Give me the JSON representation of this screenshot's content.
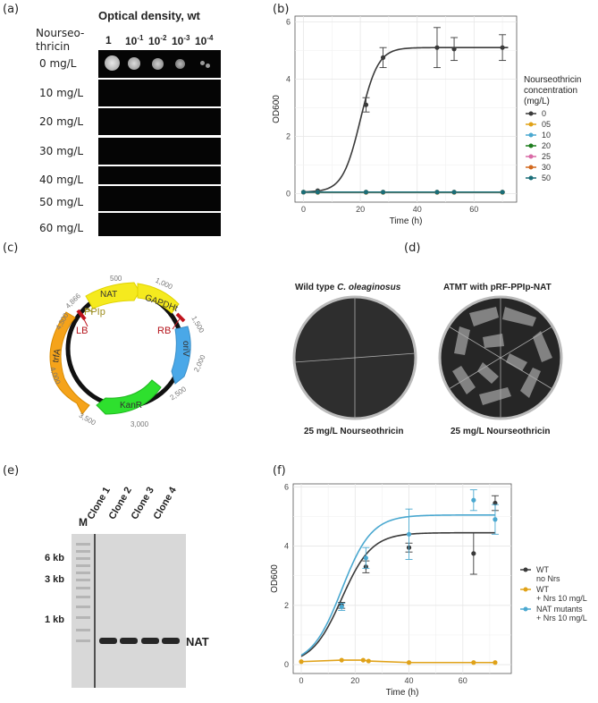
{
  "panels": {
    "a": {
      "label": "(a)",
      "header": "Optical density, wt",
      "row_header": "Nourseo-\nthricin",
      "dilutions": [
        "1",
        "10",
        "10",
        "10",
        "10"
      ],
      "dilution_exponents": [
        "",
        "-1",
        "-2",
        "-3",
        "-4"
      ],
      "rows": [
        "0 mg/L",
        "10 mg/L",
        "20 mg/L",
        "30 mg/L",
        "40 mg/L",
        "50 mg/L",
        "60 mg/L"
      ]
    },
    "b": {
      "label": "(b)"
    },
    "c": {
      "label": "(c)",
      "features": [
        "NAT",
        "GAPDHt",
        "oriV",
        "KanR",
        "trfA"
      ],
      "promoter": "PPIp",
      "borders": [
        "LB",
        "RB"
      ],
      "ticks": [
        "500",
        "1,000",
        "1,500",
        "2,000",
        "2,500",
        "3,000",
        "3,500",
        "4,000",
        "4,500",
        "4,866"
      ]
    },
    "d": {
      "label": "(d)",
      "left_title_prefix": "Wild type ",
      "left_title_italic": "C. oleaginosus",
      "right_title": "ATMT with pRF-PPIp-NAT",
      "left_caption": "25 mg/L Nourseothricin",
      "right_caption": "25 mg/L Nourseothricin"
    },
    "e": {
      "label": "(e)",
      "marker_label": "M",
      "lanes": [
        "Clone 1",
        "Clone 2",
        "Clone 3",
        "Clone 4"
      ],
      "sizes": [
        "6 kb",
        "3 kb",
        "1 kb"
      ],
      "band_label": "NAT"
    },
    "f": {
      "label": "(f)"
    }
  },
  "chart_data": [
    {
      "id": "b",
      "type": "line",
      "xlabel": "Time (h)",
      "ylabel": "OD600",
      "xlim": [
        -3,
        75
      ],
      "ylim": [
        -0.3,
        6.2
      ],
      "xticks": [
        0,
        20,
        40,
        60
      ],
      "yticks": [
        0,
        2,
        4,
        6
      ],
      "legend_title": "Nourseothricin\nconcentration\n(mg/L)",
      "legend_position": "right",
      "series": [
        {
          "name": "0",
          "color": "#3a3a3a",
          "x": [
            5,
            22,
            28,
            47,
            53,
            70
          ],
          "y": [
            0.1,
            3.1,
            4.75,
            5.1,
            5.05,
            5.1
          ],
          "err": [
            0.03,
            0.25,
            0.35,
            0.7,
            0.4,
            0.45
          ],
          "fit": "sigmoid",
          "fit_params": [
            0.05,
            5.1,
            20,
            0.32
          ]
        },
        {
          "name": "05",
          "color": "#e0a218",
          "x": [
            0,
            5,
            22,
            28,
            47,
            53,
            70
          ],
          "y": [
            0.05,
            0.04,
            0.04,
            0.04,
            0.04,
            0.04,
            0.04
          ]
        },
        {
          "name": "10",
          "color": "#4aa8d0",
          "x": [
            0,
            5,
            22,
            28,
            47,
            53,
            70
          ],
          "y": [
            0.05,
            0.05,
            0.05,
            0.05,
            0.05,
            0.05,
            0.05
          ]
        },
        {
          "name": "20",
          "color": "#1e7d1e",
          "x": [
            0,
            5,
            22,
            28,
            47,
            53,
            70
          ],
          "y": [
            0.05,
            0.05,
            0.05,
            0.05,
            0.05,
            0.05,
            0.05
          ]
        },
        {
          "name": "25",
          "color": "#d96aa6",
          "x": [
            0,
            5,
            22,
            28,
            47,
            53,
            70
          ],
          "y": [
            0.05,
            0.05,
            0.05,
            0.05,
            0.05,
            0.05,
            0.05
          ]
        },
        {
          "name": "30",
          "color": "#d2691e",
          "x": [
            0,
            5,
            22,
            28,
            47,
            53,
            70
          ],
          "y": [
            0.05,
            0.05,
            0.05,
            0.05,
            0.05,
            0.05,
            0.05
          ]
        },
        {
          "name": "50",
          "color": "#1a6e78",
          "x": [
            0,
            5,
            22,
            28,
            47,
            53,
            70
          ],
          "y": [
            0.05,
            0.05,
            0.05,
            0.05,
            0.05,
            0.05,
            0.05
          ]
        }
      ]
    },
    {
      "id": "f",
      "type": "line",
      "xlabel": "Time (h)",
      "ylabel": "OD600",
      "xlim": [
        -3,
        78
      ],
      "ylim": [
        -0.3,
        6.1
      ],
      "xticks": [
        0,
        20,
        40,
        60
      ],
      "yticks": [
        0,
        2,
        4,
        6
      ],
      "legend_position": "right",
      "series": [
        {
          "name": "WT\nno Nrs",
          "color": "#3a3a3a",
          "x": [
            15,
            24,
            40,
            64,
            72
          ],
          "y": [
            2.0,
            3.3,
            3.95,
            3.75,
            5.45
          ],
          "err": [
            0.1,
            0.2,
            0.15,
            0.7,
            0.25
          ],
          "fit": "sigmoid",
          "fit_params": [
            0.0,
            4.45,
            15,
            0.18
          ]
        },
        {
          "name": "WT\n+ Nrs 10 mg/L",
          "color": "#e0a218",
          "x": [
            0,
            15,
            23,
            25,
            40,
            64,
            72
          ],
          "y": [
            0.1,
            0.15,
            0.15,
            0.12,
            0.07,
            0.07,
            0.07
          ],
          "fit": "flat"
        },
        {
          "name": "NAT mutants\n+ Nrs 10 mg/L",
          "color": "#4aa8d0",
          "x": [
            15,
            24,
            40,
            64,
            72
          ],
          "y": [
            1.95,
            3.6,
            4.4,
            5.55,
            4.9
          ],
          "err": [
            0.12,
            0.35,
            0.85,
            0.35,
            0.5
          ],
          "fit": "sigmoid",
          "fit_params": [
            0.0,
            5.05,
            15,
            0.18
          ]
        }
      ]
    }
  ]
}
